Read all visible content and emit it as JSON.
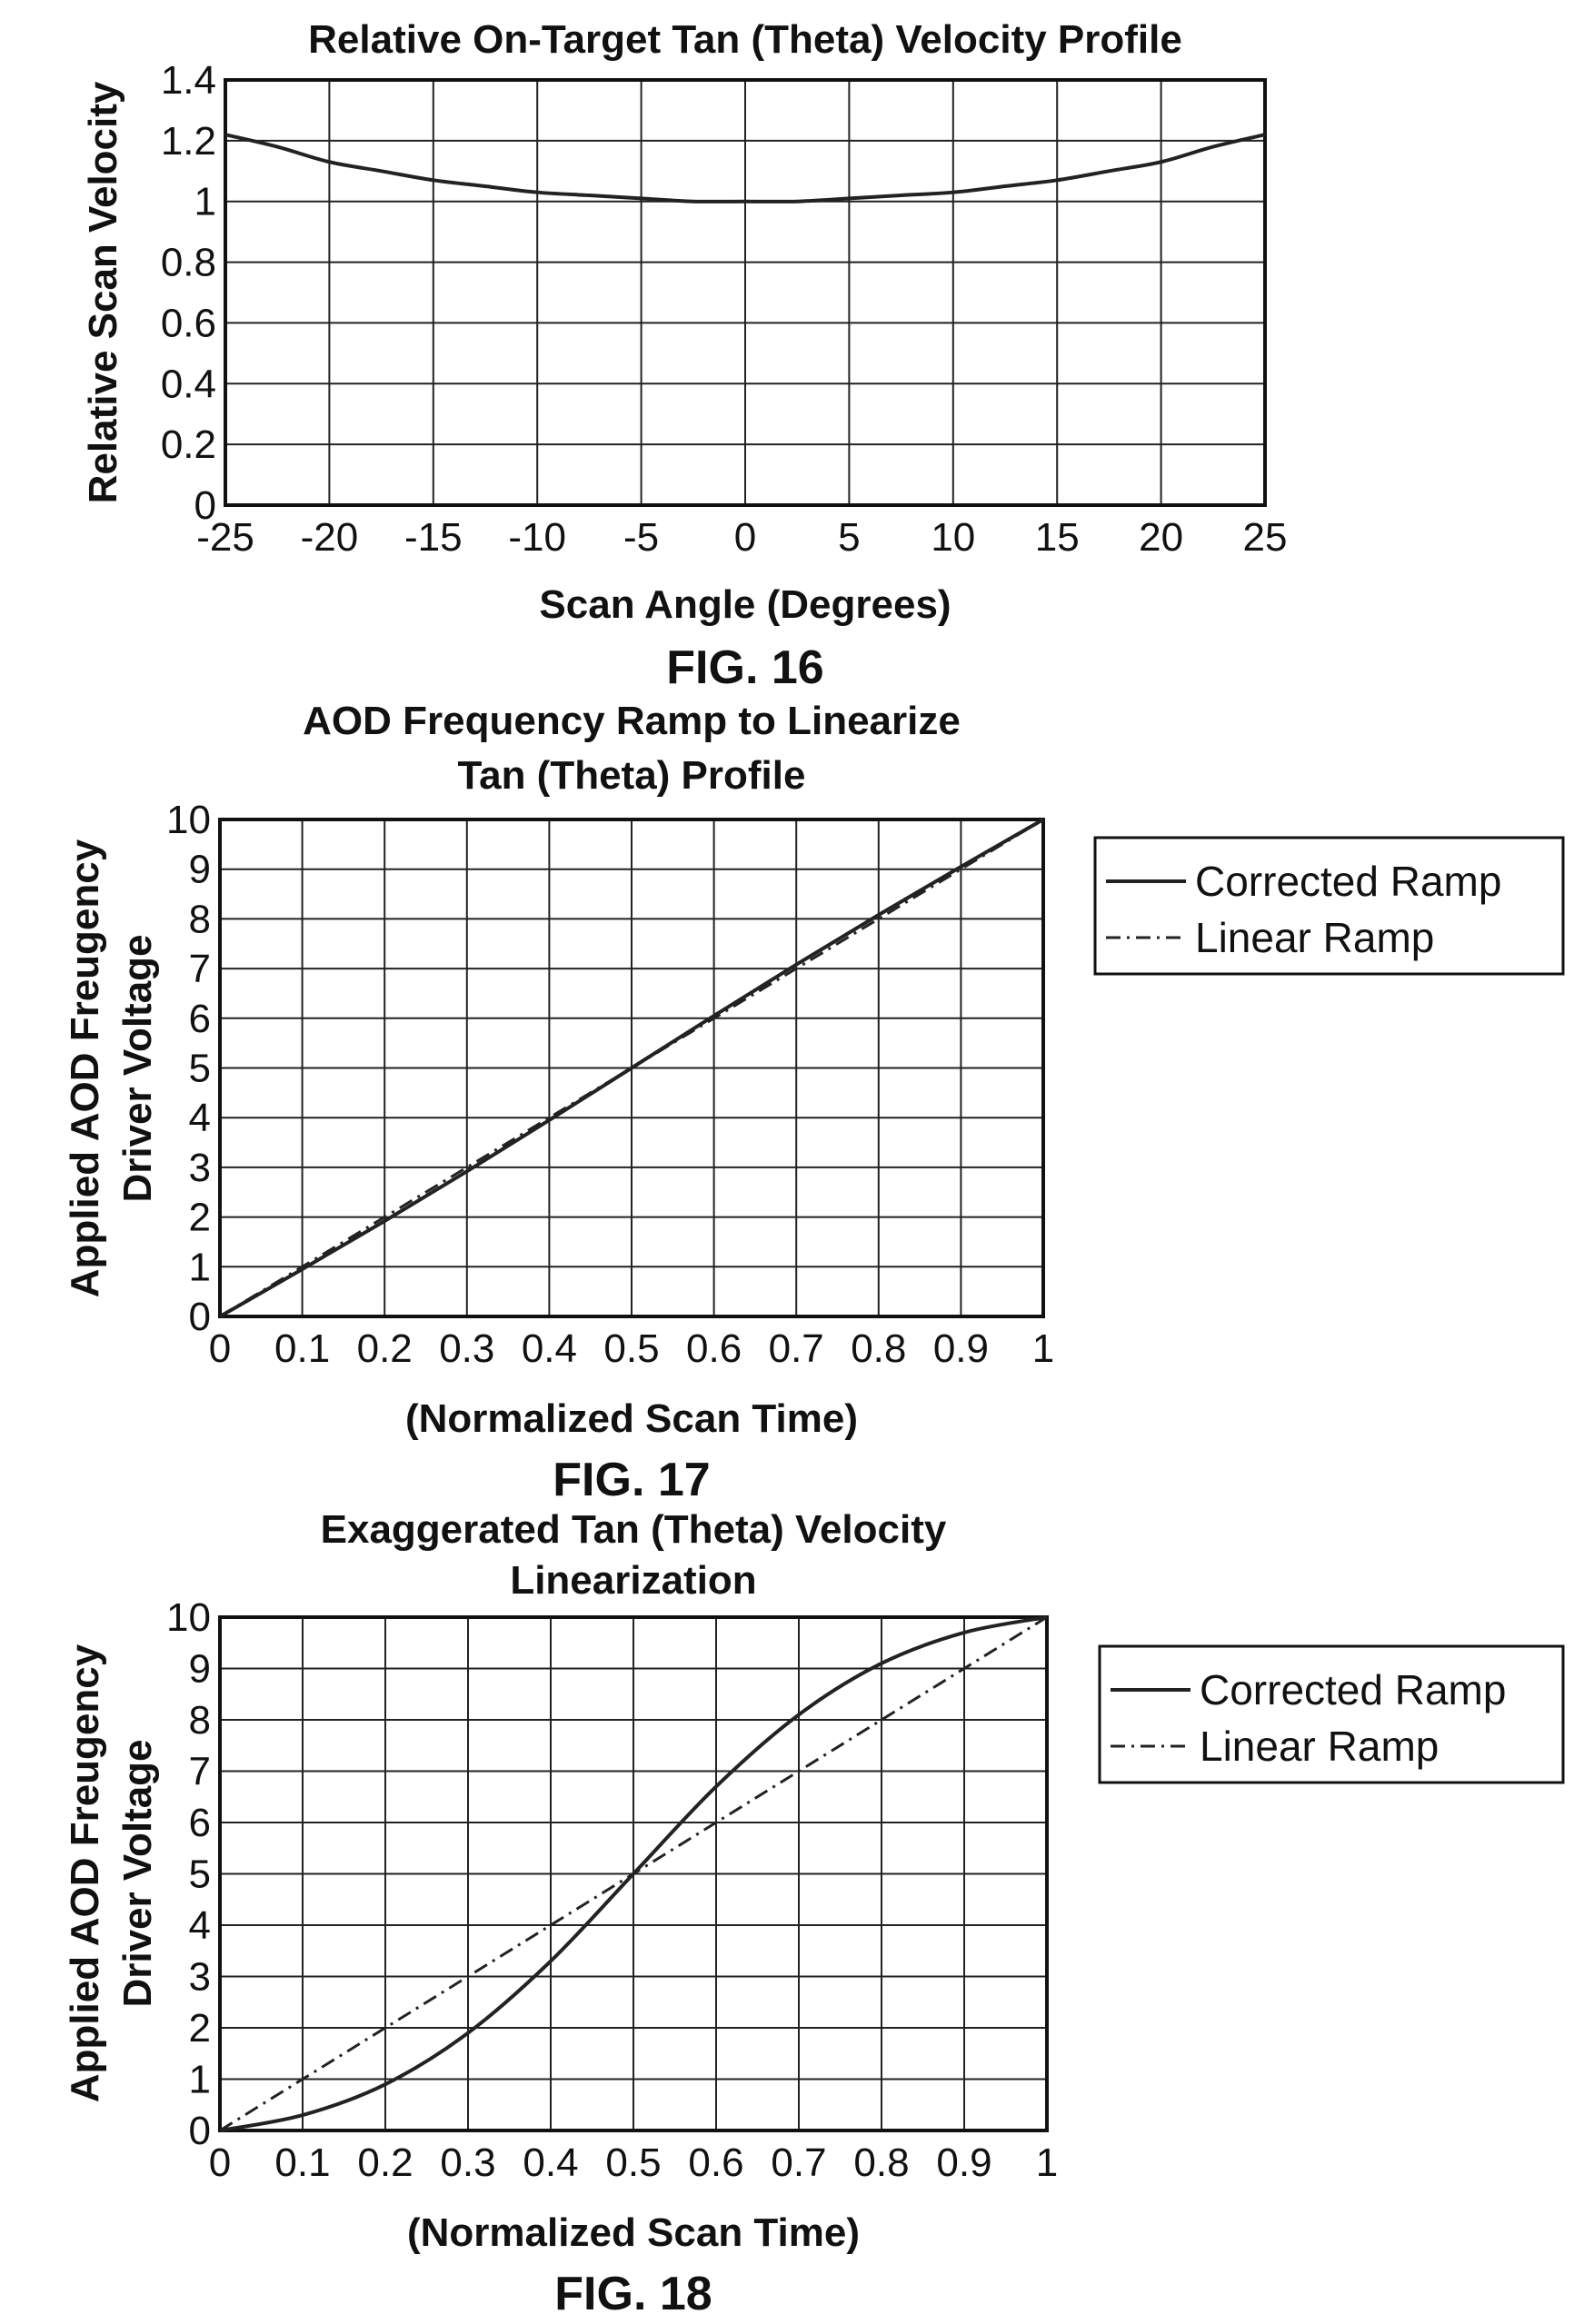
{
  "chart_data": [
    {
      "type": "line",
      "title": "Relative On-Target Tan (Theta) Velocity Profile",
      "xlabel": "Scan Angle (Degrees)",
      "ylabel": "Relative Scan Velocity",
      "figure_label": "FIG. 16",
      "xlim": [
        -25,
        25
      ],
      "ylim": [
        0,
        1.4
      ],
      "x_ticks": [
        "-25",
        "-20",
        "-15",
        "-10",
        "-5",
        "0",
        "5",
        "10",
        "15",
        "20",
        "25"
      ],
      "y_ticks": [
        "0",
        "0.2",
        "0.4",
        "0.6",
        "0.8",
        "1",
        "1.2",
        "1.4"
      ],
      "grid": true,
      "series": [
        {
          "x": [
            -25,
            -22.5,
            -20,
            -17.5,
            -15,
            -12.5,
            -10,
            -7.5,
            -5,
            -2.5,
            0,
            2.5,
            5,
            7.5,
            10,
            12.5,
            15,
            17.5,
            20,
            22.5,
            25
          ],
          "values": [
            1.22,
            1.18,
            1.13,
            1.1,
            1.07,
            1.05,
            1.03,
            1.02,
            1.01,
            1.0,
            1.0,
            1.0,
            1.01,
            1.02,
            1.03,
            1.05,
            1.07,
            1.1,
            1.13,
            1.18,
            1.22
          ],
          "style": "solid"
        }
      ]
    },
    {
      "type": "line",
      "title": [
        "AOD Frequency Ramp to Linearize",
        "Tan (Theta) Profile"
      ],
      "xlabel": "(Normalized Scan Time)",
      "ylabel": [
        "Applied AOD Freugency",
        "Driver Voltage"
      ],
      "figure_label": "FIG. 17",
      "xlim": [
        0,
        1
      ],
      "ylim": [
        0,
        10
      ],
      "x_ticks": [
        "0",
        "0.1",
        "0.2",
        "0.3",
        "0.4",
        "0.5",
        "0.6",
        "0.7",
        "0.8",
        "0.9",
        "1"
      ],
      "y_ticks": [
        "0",
        "1",
        "2",
        "3",
        "4",
        "5",
        "6",
        "7",
        "8",
        "9",
        "10"
      ],
      "grid": true,
      "legend_position": "right",
      "series": [
        {
          "name": "Corrected Ramp",
          "style": "solid",
          "x": [
            0,
            0.1,
            0.2,
            0.3,
            0.4,
            0.5,
            0.6,
            0.7,
            0.8,
            0.9,
            1
          ],
          "values": [
            0,
            0.95,
            1.92,
            2.92,
            3.95,
            5.0,
            6.05,
            7.08,
            8.08,
            9.05,
            10
          ]
        },
        {
          "name": "Linear Ramp",
          "style": "dash-dot",
          "x": [
            0,
            1
          ],
          "values": [
            0,
            10
          ]
        }
      ]
    },
    {
      "type": "line",
      "title": [
        "Exaggerated Tan (Theta) Velocity",
        "Linearization"
      ],
      "xlabel": "(Normalized Scan Time)",
      "ylabel": [
        "Applied AOD Freugency",
        "Driver Voltage"
      ],
      "figure_label": "FIG. 18",
      "xlim": [
        0,
        1
      ],
      "ylim": [
        0,
        10
      ],
      "x_ticks": [
        "0",
        "0.1",
        "0.2",
        "0.3",
        "0.4",
        "0.5",
        "0.6",
        "0.7",
        "0.8",
        "0.9",
        "1"
      ],
      "y_ticks": [
        "0",
        "1",
        "2",
        "3",
        "4",
        "5",
        "6",
        "7",
        "8",
        "9",
        "10"
      ],
      "grid": true,
      "legend_position": "right",
      "series": [
        {
          "name": "Corrected Ramp",
          "style": "solid",
          "x": [
            0,
            0.1,
            0.2,
            0.3,
            0.4,
            0.5,
            0.6,
            0.7,
            0.8,
            0.9,
            1
          ],
          "values": [
            0,
            0.3,
            0.9,
            1.9,
            3.3,
            5.0,
            6.7,
            8.1,
            9.1,
            9.7,
            10
          ]
        },
        {
          "name": "Linear Ramp",
          "style": "dash-dot",
          "x": [
            0,
            1
          ],
          "values": [
            0,
            10
          ]
        }
      ]
    }
  ]
}
